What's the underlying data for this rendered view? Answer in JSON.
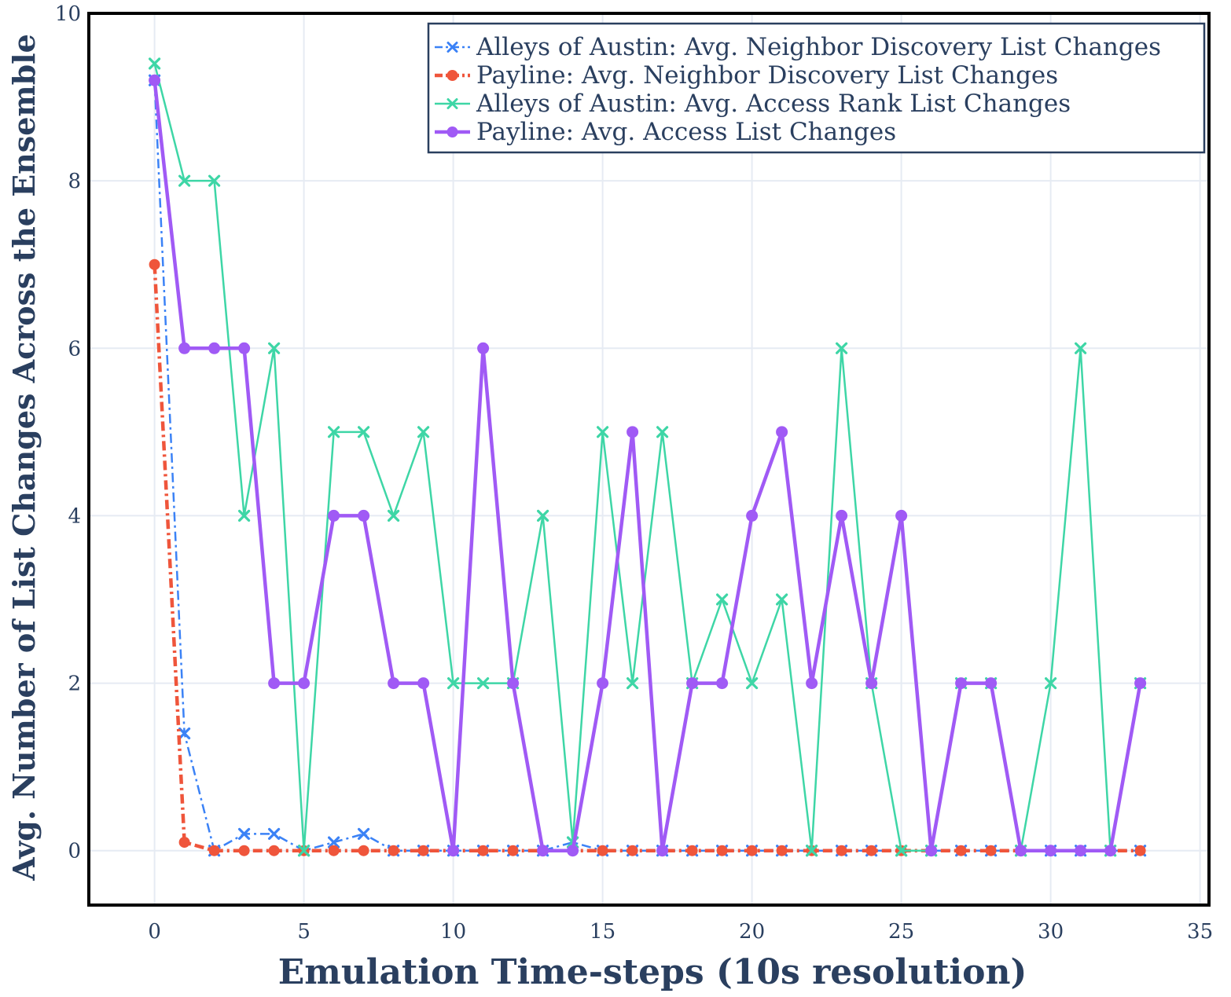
{
  "chart_data": {
    "type": "line",
    "xlabel": "Emulation Time-steps (10s resolution)",
    "ylabel": "Avg. Number of List Changes Across the Ensemble",
    "xlim": [
      -2.2,
      35.3
    ],
    "ylim": [
      -0.65,
      10
    ],
    "xticks": [
      0,
      5,
      10,
      15,
      20,
      25,
      30,
      35
    ],
    "yticks": [
      0,
      2,
      4,
      6,
      8,
      10
    ],
    "grid": true,
    "legend_position": "top-right",
    "x": [
      0,
      1,
      2,
      3,
      4,
      5,
      6,
      7,
      8,
      9,
      10,
      11,
      12,
      13,
      14,
      15,
      16,
      17,
      18,
      19,
      20,
      21,
      22,
      23,
      24,
      25,
      26,
      27,
      28,
      29,
      30,
      31,
      32,
      33
    ],
    "series": [
      {
        "name": "Alleys of Austin: Avg. Neighbor Discovery List Changes",
        "color": "#3b82f6",
        "marker": "x",
        "dash": "dashdot",
        "values": [
          9.2,
          1.4,
          0,
          0.2,
          0.2,
          0,
          0.1,
          0.2,
          0,
          0,
          0,
          0,
          0,
          0,
          0.1,
          0,
          0,
          0,
          0,
          0,
          0,
          0,
          0,
          0,
          0,
          0,
          0,
          0,
          0,
          0,
          0,
          0,
          0,
          0
        ]
      },
      {
        "name": "Payline: Avg. Neighbor Discovery List Changes",
        "color": "#ef553b",
        "marker": "circle",
        "dash": "dashdot",
        "values": [
          7,
          0.1,
          0,
          0,
          0,
          0,
          0,
          0,
          0,
          0,
          0,
          0,
          0,
          0,
          0,
          0,
          0,
          0,
          0,
          0,
          0,
          0,
          0,
          0,
          0,
          0,
          0,
          0,
          0,
          0,
          0,
          0,
          0,
          0
        ]
      },
      {
        "name": "Alleys of Austin: Avg. Access Rank List Changes",
        "color": "#3ed6a6",
        "marker": "x",
        "dash": "solid",
        "values": [
          9.4,
          8,
          8,
          4,
          6,
          0,
          5,
          5,
          4,
          5,
          2,
          2,
          2,
          4,
          0.1,
          5,
          2,
          5,
          2,
          3,
          2,
          3,
          0,
          6,
          2,
          0,
          0,
          2,
          2,
          0,
          2,
          6,
          0,
          2
        ]
      },
      {
        "name": "Payline: Avg. Access List Changes",
        "color": "#a05af5",
        "marker": "circle",
        "dash": "solid",
        "values": [
          9.2,
          6,
          6,
          6,
          2,
          2,
          4,
          4,
          2,
          2,
          0,
          6,
          2,
          0,
          0,
          2,
          5,
          0,
          2,
          2,
          4,
          5,
          2,
          4,
          2,
          4,
          0,
          2,
          2,
          0,
          0,
          0,
          0,
          2
        ]
      }
    ]
  }
}
